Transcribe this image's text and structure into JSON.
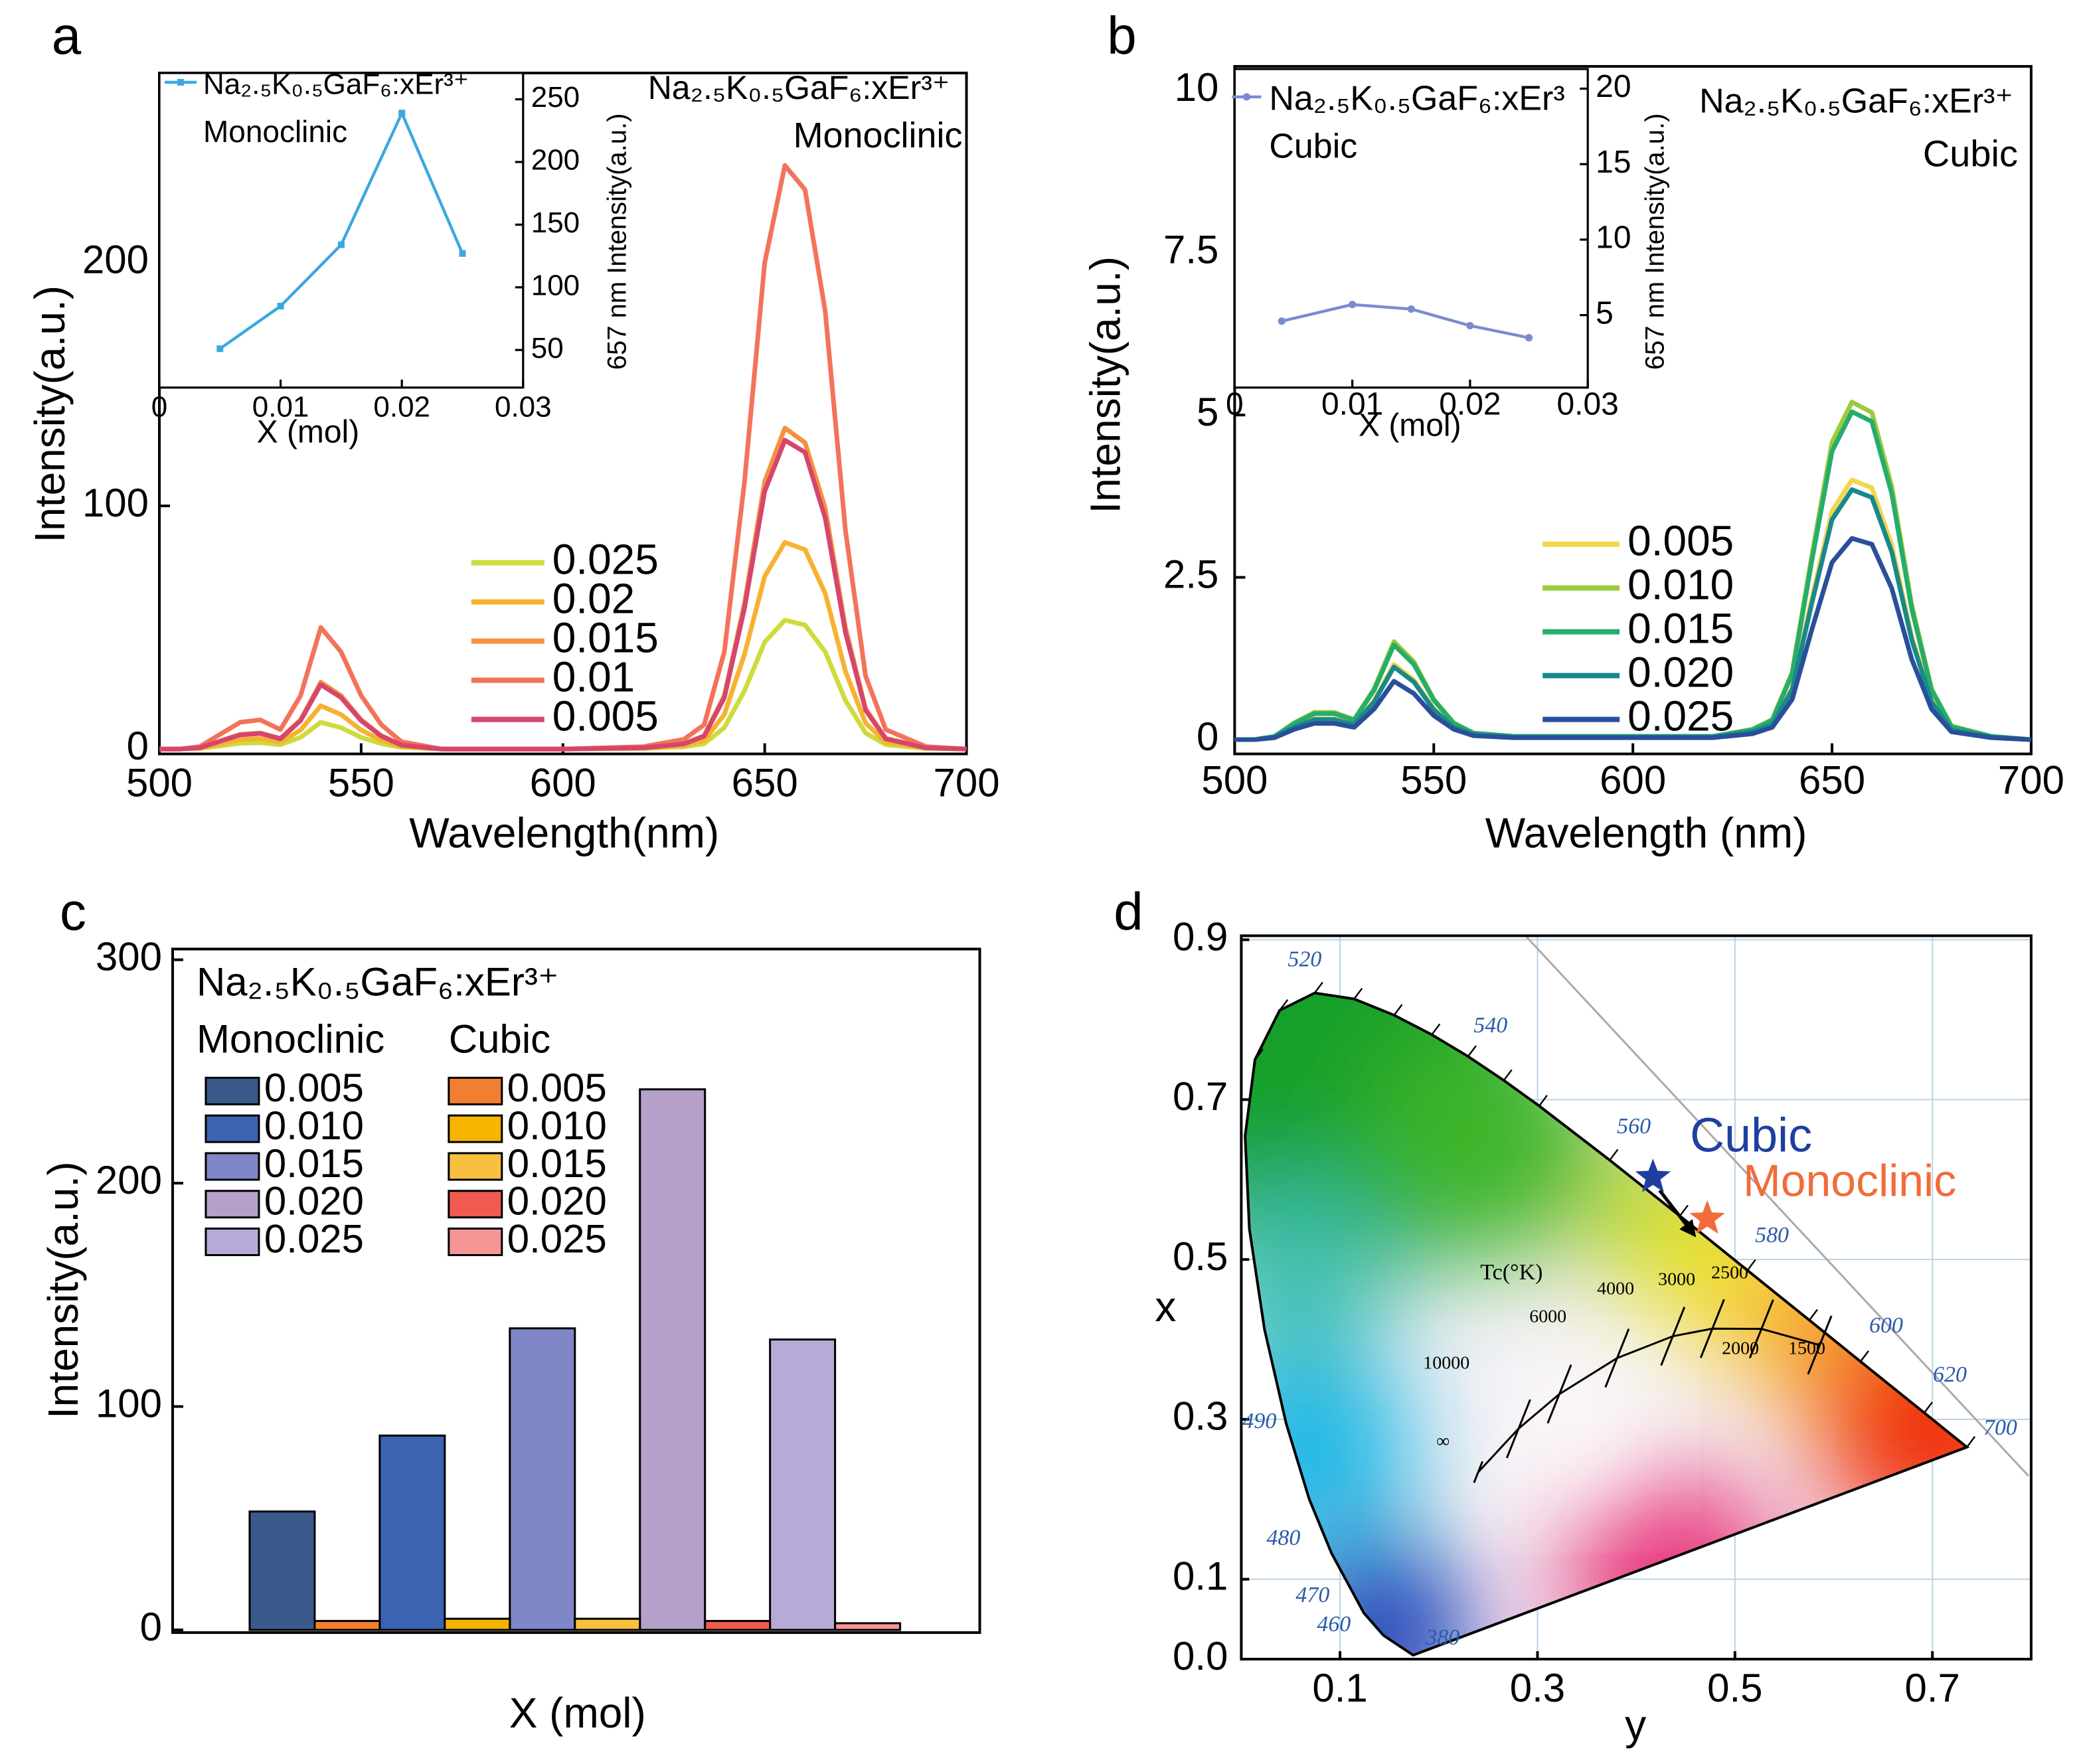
{
  "chart_data": [
    {
      "panel_label": "a",
      "type": "line",
      "xlabel": "Wavelength(nm)",
      "ylabel": "Intensity(a.u.)",
      "annotations": [
        "Na₂.₅K₀.₅GaF₆:xEr³⁺",
        "Monoclinic"
      ],
      "x": [
        500,
        505,
        510,
        515,
        520,
        525,
        530,
        535,
        540,
        545,
        550,
        555,
        560,
        570,
        580,
        600,
        620,
        630,
        635,
        640,
        645,
        650,
        655,
        660,
        665,
        670,
        675,
        680,
        690,
        700
      ],
      "xlim": [
        500,
        700
      ],
      "xticks": [
        500,
        550,
        600,
        650,
        700
      ],
      "ylim": [
        -2,
        278
      ],
      "yticks": [
        0,
        100,
        200
      ],
      "series": [
        {
          "name": "0.025",
          "color": "#cddb3c",
          "values": [
            0,
            0,
            0.2,
            1.3,
            2.4,
            2.6,
            1.8,
            4.8,
            11,
            8.8,
            4.8,
            2.2,
            0.7,
            0,
            0,
            0,
            0.2,
            0.9,
            2.2,
            8.8,
            24,
            44,
            53,
            51,
            40,
            20,
            6.6,
            1.8,
            0.2,
            0
          ]
        },
        {
          "name": "0.02",
          "color": "#f7b230",
          "values": [
            0,
            0,
            0.4,
            2.1,
            3.9,
            4.3,
            2.8,
            7.8,
            17.8,
            14.2,
            7.8,
            3.6,
            1.1,
            0,
            0,
            0,
            0.4,
            1.4,
            3.6,
            14.2,
            39,
            71,
            85,
            82,
            64,
            32,
            10.7,
            2.8,
            0.4,
            0
          ]
        },
        {
          "name": "0.015",
          "color": "#f5923e",
          "values": [
            0,
            0,
            0.6,
            3.3,
            6,
            6.6,
            4.4,
            12,
            27.5,
            22,
            12,
            5.5,
            1.7,
            0,
            0,
            0,
            0.6,
            2.2,
            5.5,
            22,
            60,
            110,
            132,
            126,
            99,
            50,
            16.5,
            4.4,
            0.6,
            0
          ]
        },
        {
          "name": "0.01",
          "color": "#f3735a",
          "values": [
            0,
            0,
            1,
            6,
            11,
            12,
            8,
            22,
            50,
            40,
            22,
            10,
            3,
            0,
            0,
            0,
            1,
            4,
            10,
            40,
            110,
            200,
            240,
            230,
            180,
            90,
            30,
            8,
            1,
            0
          ]
        },
        {
          "name": "0.005",
          "color": "#d6466c",
          "values": [
            0,
            0,
            0.5,
            3.2,
            5.8,
            6.4,
            4.2,
            11.7,
            26.5,
            21.2,
            11.7,
            5.3,
            1.6,
            0,
            0,
            0,
            0.5,
            2.1,
            5.3,
            21.2,
            58,
            106,
            127,
            122,
            95,
            48,
            16,
            4.2,
            0.5,
            0
          ]
        }
      ],
      "inset": {
        "type": "line",
        "xlabel": "X (mol)",
        "y2label": "657 nm Intensity(a.u.)",
        "annotations": [
          "Monoclinic"
        ],
        "x": [
          0.005,
          0.01,
          0.015,
          0.02,
          0.025
        ],
        "xlim": [
          0,
          0.03
        ],
        "xticks": [
          0,
          0.01,
          0.02,
          0.03
        ],
        "y2lim": [
          20,
          271
        ],
        "y2ticks": [
          50,
          100,
          150,
          200,
          250
        ],
        "series": [
          {
            "name": "Na₂.₅K₀.₅GaF₆:xEr³⁺",
            "color": "#3aa8e0",
            "axis": "y2",
            "values": [
              51,
              85,
              134,
              239,
              127
            ]
          }
        ]
      }
    },
    {
      "panel_label": "b",
      "type": "line",
      "xlabel": "Wavelength (nm)",
      "ylabel": "Intensity(a.u.)",
      "annotations": [
        "Na₂.₅K₀.₅GaF₆:xEr³⁺",
        "Cubic"
      ],
      "x": [
        500,
        505,
        510,
        515,
        520,
        525,
        530,
        535,
        540,
        545,
        550,
        555,
        560,
        570,
        580,
        600,
        620,
        630,
        635,
        640,
        645,
        650,
        655,
        660,
        665,
        670,
        675,
        680,
        690,
        700
      ],
      "xlim": [
        500,
        700
      ],
      "xticks": [
        500,
        550,
        600,
        650,
        700
      ],
      "ylim": [
        -0.22,
        10.37
      ],
      "yticks": [
        0,
        2.5,
        5,
        7.5,
        10
      ],
      "series": [
        {
          "name": "0.005",
          "color": "#f3d64c",
          "values": [
            0,
            0,
            0.04,
            0.2,
            0.32,
            0.32,
            0.24,
            0.6,
            1.16,
            0.92,
            0.48,
            0.2,
            0.08,
            0.04,
            0.04,
            0.04,
            0.04,
            0.12,
            0.24,
            0.8,
            2.2,
            3.52,
            4.0,
            3.88,
            3,
            1.6,
            0.6,
            0.16,
            0.04,
            0
          ]
        },
        {
          "name": "0.010",
          "color": "#9ccb3c",
          "values": [
            0,
            0,
            0.05,
            0.26,
            0.42,
            0.42,
            0.31,
            0.78,
            1.51,
            1.2,
            0.62,
            0.26,
            0.1,
            0.05,
            0.05,
            0.05,
            0.05,
            0.16,
            0.31,
            1.04,
            2.86,
            4.58,
            5.2,
            5.04,
            3.9,
            2.08,
            0.78,
            0.21,
            0.05,
            0
          ]
        },
        {
          "name": "0.015",
          "color": "#27ad6b",
          "values": [
            0,
            0,
            0.05,
            0.25,
            0.4,
            0.4,
            0.3,
            0.76,
            1.46,
            1.16,
            0.61,
            0.25,
            0.1,
            0.05,
            0.05,
            0.05,
            0.05,
            0.15,
            0.3,
            1.01,
            2.78,
            4.44,
            5.05,
            4.9,
            3.79,
            2.02,
            0.76,
            0.2,
            0.05,
            0
          ]
        },
        {
          "name": "0.020",
          "color": "#19898b",
          "values": [
            0,
            0,
            0.04,
            0.19,
            0.31,
            0.31,
            0.23,
            0.58,
            1.12,
            0.89,
            0.46,
            0.19,
            0.08,
            0.04,
            0.04,
            0.04,
            0.04,
            0.12,
            0.23,
            0.77,
            2.12,
            3.39,
            3.85,
            3.73,
            2.89,
            1.54,
            0.58,
            0.15,
            0.04,
            0
          ]
        },
        {
          "name": "0.025",
          "color": "#2a4f9a",
          "values": [
            0,
            0,
            0.03,
            0.16,
            0.25,
            0.25,
            0.19,
            0.47,
            0.9,
            0.71,
            0.37,
            0.16,
            0.06,
            0.03,
            0.03,
            0.03,
            0.03,
            0.09,
            0.19,
            0.62,
            1.71,
            2.73,
            3.1,
            3.01,
            2.33,
            1.24,
            0.47,
            0.12,
            0.03,
            0
          ]
        }
      ],
      "inset": {
        "type": "line",
        "xlabel": "X (mol)",
        "y2label": "657 nm Intensity(a.u.)",
        "annotations": [
          "Cubic"
        ],
        "x": [
          0.004,
          0.01,
          0.015,
          0.02,
          0.025
        ],
        "xlim": [
          0,
          0.03
        ],
        "xticks": [
          0,
          0.01,
          0.02,
          0.03
        ],
        "y2lim": [
          0.2,
          21.3
        ],
        "y2ticks": [
          5,
          10,
          15,
          20
        ],
        "series": [
          {
            "name": "Na₂.₅K₀.₅GaF₆:xEr³",
            "color": "#7b8ad0",
            "axis": "y2",
            "values": [
              4.6,
              5.7,
              5.4,
              4.3,
              3.5
            ]
          }
        ]
      }
    },
    {
      "panel_label": "c",
      "type": "bar",
      "xlabel": "X (mol)",
      "ylabel": "Intensity(a.u.)",
      "title": "Na₂.₅K₀.₅GaF₆:xEr³⁺",
      "categories": [
        null,
        null,
        null,
        null,
        null
      ],
      "ylim": [
        -1.2,
        304.8
      ],
      "yticks": [
        0,
        100,
        200,
        300
      ],
      "series": [
        {
          "name": "Monoclinic",
          "labels": [
            "0.005",
            "0.010",
            "0.015",
            "0.020",
            "0.025"
          ],
          "colors": [
            "#3a5a8c",
            "#3b63b2",
            "#7f87c8",
            "#b5a0c9",
            "#b8aad8"
          ],
          "values": [
            53,
            87,
            135,
            242,
            130
          ]
        },
        {
          "name": "Cubic",
          "labels": [
            "0.005",
            "0.010",
            "0.015",
            "0.020",
            "0.025"
          ],
          "colors": [
            "#f08030",
            "#f5b400",
            "#f7c040",
            "#f05a50",
            "#f59595"
          ],
          "values": [
            4,
            5,
            5,
            4,
            3
          ]
        }
      ]
    },
    {
      "panel_label": "d",
      "type": "cie",
      "xlabel": "y",
      "ylabel": "x",
      "grid": true,
      "xlim": [
        0,
        0.8
      ],
      "xticks": [
        0.1,
        0.3,
        0.5,
        0.7
      ],
      "ylim": [
        0,
        0.905
      ],
      "yticks": [
        {
          "value": 0,
          "label": "0.0"
        },
        0.1,
        0.3,
        0.5,
        0.7,
        0.9
      ],
      "wavelength_labels": [
        "520",
        "540",
        "560",
        "580",
        "600",
        "620",
        "700",
        "490",
        "480",
        "470",
        "460",
        "380"
      ],
      "cct_labels": [
        "Tc(°K)",
        "10000",
        "6000",
        "4000",
        "3000",
        "2500",
        "2000",
        "1500",
        "∞"
      ],
      "series": [
        {
          "name": "Cubic",
          "color": "#1f3fa0",
          "x": [
            0.417
          ],
          "values": [
            0.603
          ]
        },
        {
          "name": "Monoclinic",
          "color": "#f26b3a",
          "x": [
            0.472
          ],
          "values": [
            0.551
          ]
        }
      ]
    }
  ]
}
